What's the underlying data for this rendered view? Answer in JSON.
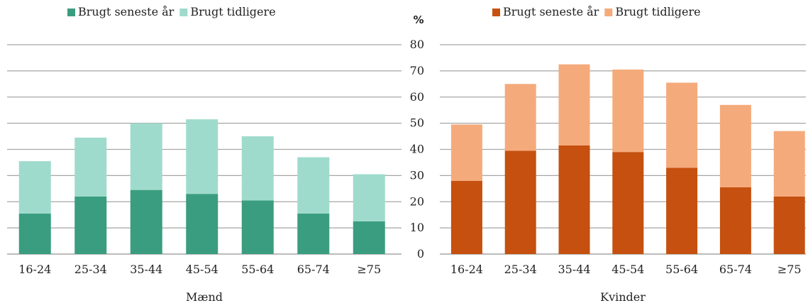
{
  "chart_data": [
    {
      "type": "bar",
      "stacked": true,
      "xlabel": "Mænd",
      "ylabel": "",
      "ylim": [
        0,
        80
      ],
      "grid": true,
      "legend_position": "top",
      "categories": [
        "16-24",
        "25-34",
        "35-44",
        "45-54",
        "55-64",
        "65-74",
        "≥75"
      ],
      "series": [
        {
          "name": "Brugt seneste år",
          "color": "#3a9d7f",
          "values": [
            15.5,
            22,
            24.5,
            23,
            20.5,
            15.5,
            12.5
          ]
        },
        {
          "name": "Brugt tidligere",
          "color": "#9fdbcc",
          "values": [
            20,
            22.5,
            25.5,
            28.5,
            24.5,
            21.5,
            18
          ]
        }
      ]
    },
    {
      "type": "bar",
      "stacked": true,
      "xlabel": "Kvinder",
      "ylabel": "%",
      "ylim": [
        0,
        80
      ],
      "yticks": [
        0,
        10,
        20,
        30,
        40,
        50,
        60,
        70,
        80
      ],
      "grid": true,
      "legend_position": "top",
      "categories": [
        "16-24",
        "25-34",
        "35-44",
        "45-54",
        "55-64",
        "65-74",
        "≥75"
      ],
      "series": [
        {
          "name": "Brugt seneste år",
          "color": "#c5500f",
          "values": [
            28,
            39.5,
            41.5,
            39,
            33,
            25.5,
            22
          ]
        },
        {
          "name": "Brugt tidligere",
          "color": "#f5aa7b",
          "values": [
            21.5,
            25.5,
            31,
            31.5,
            32.5,
            31.5,
            25
          ]
        }
      ]
    }
  ]
}
